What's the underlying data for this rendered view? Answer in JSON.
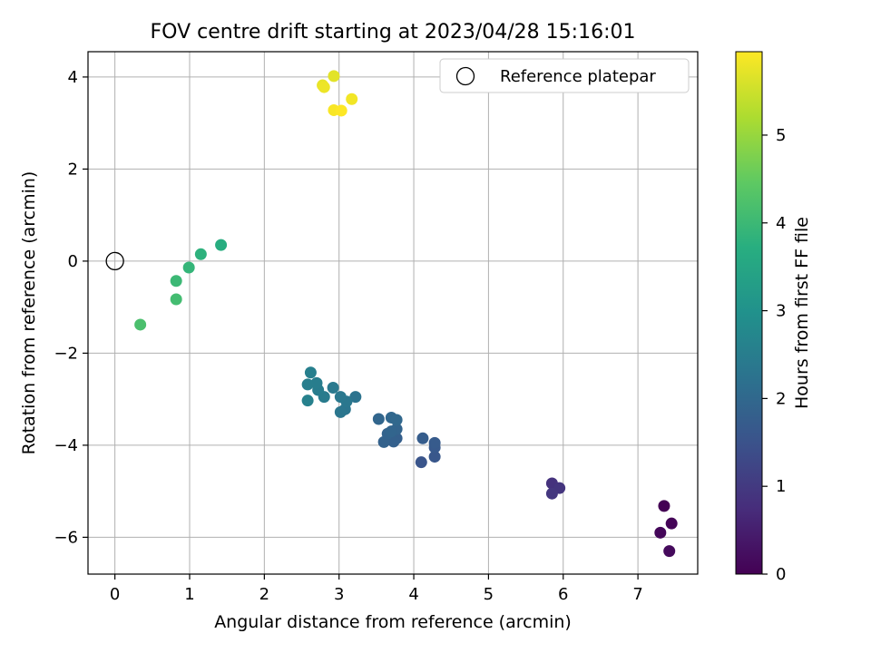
{
  "chart_data": {
    "type": "scatter",
    "title": "FOV centre drift starting at 2023/04/28 15:16:01",
    "xlabel": "Angular distance from reference (arcmin)",
    "ylabel": "Rotation from reference (arcmin)",
    "xlim": [
      -0.36,
      7.8
    ],
    "ylim": [
      -6.8,
      4.55
    ],
    "xticks": [
      0,
      1,
      2,
      3,
      4,
      5,
      6,
      7
    ],
    "yticks": [
      -6,
      -4,
      -2,
      0,
      2,
      4
    ],
    "grid": true,
    "legend": {
      "location": "upper-right",
      "entries": [
        "Reference platepar"
      ]
    },
    "reference_point": {
      "x": 0,
      "y": 0,
      "marker": "open-circle"
    },
    "colorbar": {
      "label": "Hours from first FF file",
      "colormap": "viridis",
      "range": [
        0,
        5.95
      ],
      "ticks": [
        0,
        1,
        2,
        3,
        4,
        5
      ]
    },
    "points": [
      {
        "x": 7.35,
        "y": -5.32,
        "t": 0.0
      },
      {
        "x": 7.45,
        "y": -5.7,
        "t": 0.05
      },
      {
        "x": 7.3,
        "y": -5.9,
        "t": 0.1
      },
      {
        "x": 7.42,
        "y": -6.3,
        "t": 0.15
      },
      {
        "x": 5.85,
        "y": -4.83,
        "t": 0.85
      },
      {
        "x": 5.95,
        "y": -4.93,
        "t": 0.9
      },
      {
        "x": 5.85,
        "y": -5.05,
        "t": 0.95
      },
      {
        "x": 4.1,
        "y": -4.37,
        "t": 1.55
      },
      {
        "x": 4.28,
        "y": -4.25,
        "t": 1.6
      },
      {
        "x": 4.28,
        "y": -4.05,
        "t": 1.65
      },
      {
        "x": 4.28,
        "y": -3.95,
        "t": 1.7
      },
      {
        "x": 4.12,
        "y": -3.85,
        "t": 1.75
      },
      {
        "x": 3.77,
        "y": -3.85,
        "t": 1.8
      },
      {
        "x": 3.73,
        "y": -3.92,
        "t": 1.82
      },
      {
        "x": 3.6,
        "y": -3.93,
        "t": 1.85
      },
      {
        "x": 3.65,
        "y": -3.75,
        "t": 1.88
      },
      {
        "x": 3.77,
        "y": -3.65,
        "t": 1.9
      },
      {
        "x": 3.7,
        "y": -3.7,
        "t": 1.92
      },
      {
        "x": 3.53,
        "y": -3.43,
        "t": 1.95
      },
      {
        "x": 3.7,
        "y": -3.4,
        "t": 1.98
      },
      {
        "x": 3.77,
        "y": -3.45,
        "t": 2.0
      },
      {
        "x": 3.22,
        "y": -2.95,
        "t": 2.25
      },
      {
        "x": 3.08,
        "y": -3.22,
        "t": 2.3
      },
      {
        "x": 3.02,
        "y": -3.28,
        "t": 2.32
      },
      {
        "x": 3.1,
        "y": -3.05,
        "t": 2.35
      },
      {
        "x": 3.02,
        "y": -2.95,
        "t": 2.38
      },
      {
        "x": 2.92,
        "y": -2.75,
        "t": 2.4
      },
      {
        "x": 2.8,
        "y": -2.95,
        "t": 2.45
      },
      {
        "x": 2.72,
        "y": -2.8,
        "t": 2.48
      },
      {
        "x": 2.7,
        "y": -2.65,
        "t": 2.5
      },
      {
        "x": 2.58,
        "y": -2.68,
        "t": 2.52
      },
      {
        "x": 2.62,
        "y": -2.42,
        "t": 2.55
      },
      {
        "x": 2.58,
        "y": -3.03,
        "t": 2.58
      },
      {
        "x": 1.42,
        "y": 0.35,
        "t": 3.7
      },
      {
        "x": 1.15,
        "y": 0.15,
        "t": 3.8
      },
      {
        "x": 0.99,
        "y": -0.14,
        "t": 3.9
      },
      {
        "x": 0.82,
        "y": -0.43,
        "t": 4.0
      },
      {
        "x": 0.82,
        "y": -0.83,
        "t": 4.1
      },
      {
        "x": 0.34,
        "y": -1.38,
        "t": 4.2
      },
      {
        "x": 2.93,
        "y": 4.02,
        "t": 5.7
      },
      {
        "x": 2.78,
        "y": 3.82,
        "t": 5.75
      },
      {
        "x": 2.8,
        "y": 3.78,
        "t": 5.8
      },
      {
        "x": 3.17,
        "y": 3.52,
        "t": 5.85
      },
      {
        "x": 2.93,
        "y": 3.28,
        "t": 5.9
      },
      {
        "x": 3.03,
        "y": 3.27,
        "t": 5.95
      }
    ]
  }
}
